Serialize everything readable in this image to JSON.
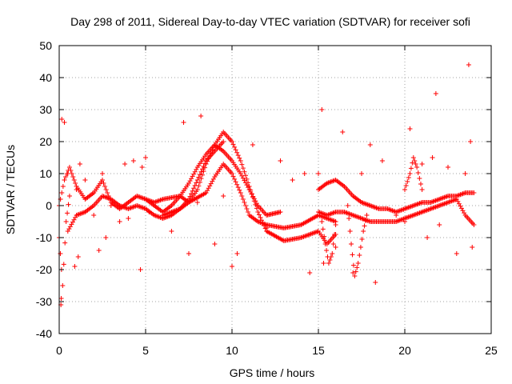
{
  "chart_data": {
    "type": "scatter",
    "title": "Day 298 of 2011, Sidereal Day-to-day VTEC variation (SDTVAR) for receiver sofi",
    "xlabel": "GPS time / hours",
    "ylabel": "SDTVAR / TECUs",
    "xlim": [
      0,
      25
    ],
    "ylim": [
      -40,
      50
    ],
    "xticks": [
      0,
      5,
      10,
      15,
      20,
      25
    ],
    "yticks": [
      -40,
      -30,
      -20,
      -10,
      0,
      10,
      20,
      30,
      40,
      50
    ],
    "grid": true,
    "marker": "+",
    "color": "#ff0000",
    "series": [
      {
        "name": "SDTVAR",
        "outliers": [
          [
            0.1,
            -31
          ],
          [
            0.12,
            -29
          ],
          [
            0.15,
            27
          ],
          [
            0.3,
            26
          ],
          [
            0.5,
            10
          ],
          [
            0.9,
            -19
          ],
          [
            1.0,
            5
          ],
          [
            1.1,
            -16
          ],
          [
            1.2,
            13
          ],
          [
            1.5,
            8
          ],
          [
            2.0,
            -3
          ],
          [
            2.3,
            -14
          ],
          [
            2.5,
            10
          ],
          [
            2.7,
            -10
          ],
          [
            3.0,
            0
          ],
          [
            3.5,
            -5
          ],
          [
            3.8,
            13
          ],
          [
            4.0,
            -4
          ],
          [
            4.3,
            14
          ],
          [
            4.7,
            -20
          ],
          [
            4.8,
            12
          ],
          [
            5.0,
            15
          ],
          [
            5.2,
            -2
          ],
          [
            6.5,
            -8
          ],
          [
            7.2,
            26
          ],
          [
            7.5,
            -15
          ],
          [
            8.0,
            1
          ],
          [
            8.2,
            28
          ],
          [
            9.0,
            -12
          ],
          [
            9.5,
            3
          ],
          [
            10.0,
            -19
          ],
          [
            10.3,
            -15
          ],
          [
            11.2,
            19
          ],
          [
            12.0,
            -7
          ],
          [
            12.8,
            14
          ],
          [
            13.5,
            8
          ],
          [
            14.2,
            10
          ],
          [
            14.5,
            -21
          ],
          [
            15.0,
            10
          ],
          [
            15.2,
            30
          ],
          [
            15.3,
            -18
          ],
          [
            16.0,
            -13
          ],
          [
            16.4,
            23
          ],
          [
            17.0,
            -21
          ],
          [
            17.5,
            10
          ],
          [
            18.0,
            19
          ],
          [
            18.3,
            -24
          ],
          [
            18.7,
            14
          ],
          [
            19.5,
            -3
          ],
          [
            20.0,
            -5
          ],
          [
            20.3,
            24
          ],
          [
            21.0,
            13
          ],
          [
            21.3,
            -10
          ],
          [
            21.6,
            15
          ],
          [
            21.8,
            35
          ],
          [
            22.0,
            -6
          ],
          [
            22.5,
            12
          ],
          [
            23.0,
            -15
          ],
          [
            23.5,
            10
          ],
          [
            23.7,
            44
          ],
          [
            23.8,
            20
          ],
          [
            23.9,
            -13
          ]
        ],
        "traces": [
          [
            [
              0.0,
              0
            ],
            [
              0.3,
              8
            ],
            [
              0.6,
              12
            ],
            [
              1.0,
              6
            ],
            [
              1.5,
              2
            ],
            [
              2.0,
              4
            ],
            [
              2.5,
              8
            ],
            [
              3.0,
              1
            ],
            [
              3.5,
              -1
            ],
            [
              4.0,
              1
            ],
            [
              4.5,
              3
            ],
            [
              5.0,
              2
            ],
            [
              5.5,
              1
            ],
            [
              6.0,
              2
            ],
            [
              7.0,
              3
            ],
            [
              7.5,
              1
            ],
            [
              8.5,
              4
            ],
            [
              9.0,
              9
            ],
            [
              9.5,
              13
            ],
            [
              10.0,
              10
            ],
            [
              10.5,
              4
            ],
            [
              11.0,
              -3
            ],
            [
              11.5,
              -5
            ],
            [
              12.0,
              -6
            ],
            [
              13.0,
              -7
            ],
            [
              14.0,
              -6
            ],
            [
              15.0,
              -3
            ],
            [
              16.0,
              -5
            ]
          ],
          [
            [
              0.5,
              -8
            ],
            [
              1.0,
              -3
            ],
            [
              1.5,
              -2
            ],
            [
              2.0,
              0
            ],
            [
              2.5,
              3
            ],
            [
              3.0,
              2
            ],
            [
              3.5,
              0
            ],
            [
              4.0,
              -1
            ],
            [
              4.5,
              0
            ],
            [
              5.0,
              -1
            ],
            [
              5.5,
              -3
            ],
            [
              6.0,
              -4
            ],
            [
              6.5,
              -3
            ],
            [
              7.0,
              -1
            ],
            [
              7.5,
              1
            ],
            [
              8.0,
              5
            ],
            [
              8.5,
              13
            ],
            [
              9.0,
              19
            ],
            [
              9.5,
              23
            ],
            [
              10.0,
              20
            ],
            [
              10.5,
              14
            ],
            [
              11.0,
              6
            ],
            [
              11.5,
              -2
            ],
            [
              12.0,
              -8
            ],
            [
              13.0,
              -11
            ],
            [
              14.0,
              -10
            ],
            [
              15.0,
              -8
            ],
            [
              15.5,
              -12
            ],
            [
              16.0,
              -9
            ]
          ],
          [
            [
              5.0,
              2
            ],
            [
              5.5,
              0
            ],
            [
              6.0,
              -2
            ],
            [
              6.5,
              0
            ],
            [
              7.0,
              3
            ],
            [
              7.5,
              7
            ],
            [
              8.0,
              12
            ],
            [
              8.5,
              16
            ],
            [
              9.0,
              19
            ],
            [
              9.5,
              17
            ],
            [
              10.0,
              14
            ],
            [
              10.5,
              10
            ],
            [
              11.0,
              5
            ],
            [
              11.5,
              0
            ],
            [
              12.0,
              -3
            ],
            [
              12.8,
              -2
            ]
          ],
          [
            [
              6.0,
              -3
            ],
            [
              6.5,
              -2
            ],
            [
              7.0,
              -1
            ],
            [
              7.5,
              2
            ],
            [
              8.0,
              8
            ],
            [
              8.5,
              14
            ],
            [
              9.0,
              17
            ],
            [
              9.5,
              20
            ]
          ],
          [
            [
              15.0,
              5
            ],
            [
              15.5,
              7
            ],
            [
              16.0,
              8
            ],
            [
              16.5,
              6
            ],
            [
              17.0,
              3
            ],
            [
              17.5,
              1
            ],
            [
              18.0,
              0
            ],
            [
              18.5,
              -1
            ],
            [
              19.0,
              -1
            ],
            [
              19.5,
              -2
            ],
            [
              20.0,
              -1
            ],
            [
              20.5,
              0
            ],
            [
              21.0,
              1
            ],
            [
              21.5,
              1
            ],
            [
              22.0,
              2
            ],
            [
              22.5,
              3
            ],
            [
              23.0,
              3
            ],
            [
              23.5,
              4
            ],
            [
              24.0,
              4
            ]
          ],
          [
            [
              15.0,
              -2
            ],
            [
              15.5,
              -3
            ],
            [
              16.0,
              -2
            ],
            [
              16.5,
              -2
            ],
            [
              17.0,
              -3
            ],
            [
              17.5,
              -4
            ],
            [
              18.0,
              -5
            ],
            [
              18.5,
              -5
            ],
            [
              19.0,
              -5
            ],
            [
              19.5,
              -5
            ],
            [
              20.0,
              -4
            ],
            [
              20.5,
              -3
            ],
            [
              21.0,
              -2
            ],
            [
              21.5,
              -1
            ],
            [
              22.0,
              0
            ],
            [
              22.5,
              1
            ],
            [
              23.0,
              2
            ],
            [
              23.5,
              -3
            ],
            [
              24.0,
              -6
            ]
          ],
          [
            [
              15.2,
              -5
            ],
            [
              15.4,
              -12
            ],
            [
              15.6,
              -18
            ],
            [
              15.8,
              -15
            ],
            [
              16.0,
              -6
            ]
          ],
          [
            [
              16.7,
              0
            ],
            [
              16.9,
              -12
            ],
            [
              17.1,
              -22
            ],
            [
              17.3,
              -18
            ],
            [
              17.6,
              -8
            ],
            [
              17.8,
              -3
            ]
          ],
          [
            [
              20.0,
              5
            ],
            [
              20.3,
              10
            ],
            [
              20.5,
              15
            ],
            [
              20.7,
              12
            ],
            [
              21.0,
              5
            ]
          ],
          [
            [
              0.0,
              -10
            ],
            [
              0.2,
              -25
            ],
            [
              0.4,
              -5
            ],
            [
              0.6,
              3
            ]
          ]
        ]
      }
    ]
  }
}
